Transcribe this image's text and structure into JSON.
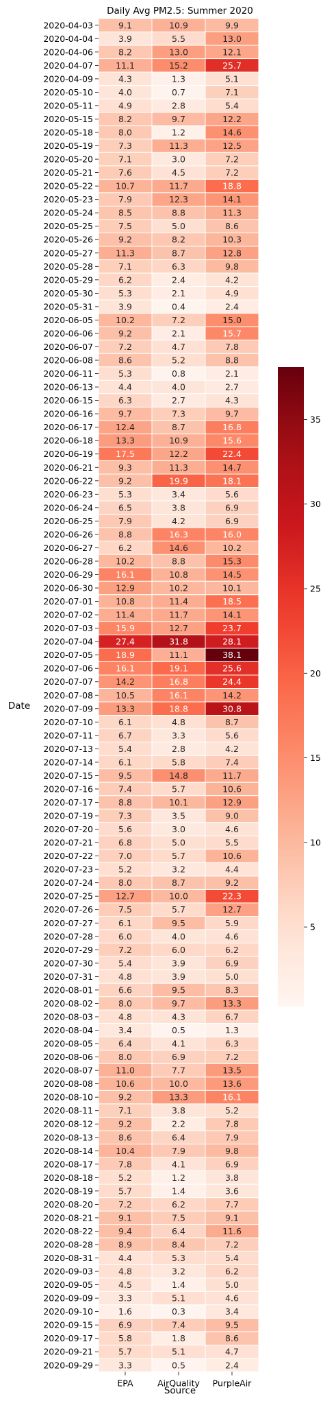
{
  "chart_data": {
    "type": "heatmap",
    "title": "Daily Avg PM2.5: Summer 2020",
    "xlabel": "Source",
    "ylabel": "Date",
    "columns": [
      "EPA",
      "AirQuality",
      "PurpleAir"
    ],
    "rows": [
      "2020-04-03",
      "2020-04-04",
      "2020-04-06",
      "2020-04-07",
      "2020-04-09",
      "2020-05-10",
      "2020-05-11",
      "2020-05-15",
      "2020-05-18",
      "2020-05-19",
      "2020-05-20",
      "2020-05-21",
      "2020-05-22",
      "2020-05-23",
      "2020-05-24",
      "2020-05-25",
      "2020-05-26",
      "2020-05-27",
      "2020-05-28",
      "2020-05-29",
      "2020-05-30",
      "2020-05-31",
      "2020-06-05",
      "2020-06-06",
      "2020-06-07",
      "2020-06-08",
      "2020-06-11",
      "2020-06-13",
      "2020-06-15",
      "2020-06-16",
      "2020-06-17",
      "2020-06-18",
      "2020-06-19",
      "2020-06-21",
      "2020-06-22",
      "2020-06-23",
      "2020-06-24",
      "2020-06-25",
      "2020-06-26",
      "2020-06-27",
      "2020-06-28",
      "2020-06-29",
      "2020-06-30",
      "2020-07-01",
      "2020-07-02",
      "2020-07-03",
      "2020-07-04",
      "2020-07-05",
      "2020-07-06",
      "2020-07-07",
      "2020-07-08",
      "2020-07-09",
      "2020-07-10",
      "2020-07-11",
      "2020-07-13",
      "2020-07-14",
      "2020-07-15",
      "2020-07-16",
      "2020-07-17",
      "2020-07-19",
      "2020-07-20",
      "2020-07-21",
      "2020-07-22",
      "2020-07-23",
      "2020-07-24",
      "2020-07-25",
      "2020-07-26",
      "2020-07-27",
      "2020-07-28",
      "2020-07-29",
      "2020-07-30",
      "2020-07-31",
      "2020-08-01",
      "2020-08-02",
      "2020-08-03",
      "2020-08-04",
      "2020-08-05",
      "2020-08-06",
      "2020-08-07",
      "2020-08-08",
      "2020-08-10",
      "2020-08-11",
      "2020-08-12",
      "2020-08-13",
      "2020-08-14",
      "2020-08-17",
      "2020-08-18",
      "2020-08-19",
      "2020-08-20",
      "2020-08-21",
      "2020-08-22",
      "2020-08-28",
      "2020-08-31",
      "2020-09-03",
      "2020-09-05",
      "2020-09-09",
      "2020-09-10",
      "2020-09-15",
      "2020-09-17",
      "2020-09-21",
      "2020-09-29"
    ],
    "values": [
      [
        9.1,
        10.9,
        9.9
      ],
      [
        3.9,
        5.5,
        13.0
      ],
      [
        8.2,
        13.0,
        12.1
      ],
      [
        11.1,
        15.2,
        25.7
      ],
      [
        4.3,
        1.3,
        5.1
      ],
      [
        4.0,
        0.7,
        7.1
      ],
      [
        4.9,
        2.8,
        5.4
      ],
      [
        8.2,
        9.7,
        12.2
      ],
      [
        8.0,
        1.2,
        14.6
      ],
      [
        7.3,
        11.3,
        12.5
      ],
      [
        7.1,
        3.0,
        7.2
      ],
      [
        7.6,
        4.5,
        7.2
      ],
      [
        10.7,
        11.7,
        18.8
      ],
      [
        7.9,
        12.3,
        14.1
      ],
      [
        8.5,
        8.8,
        11.3
      ],
      [
        7.5,
        5.0,
        8.6
      ],
      [
        9.2,
        8.2,
        10.3
      ],
      [
        11.3,
        8.7,
        12.8
      ],
      [
        7.1,
        6.3,
        9.8
      ],
      [
        6.2,
        2.4,
        4.2
      ],
      [
        5.3,
        2.1,
        4.9
      ],
      [
        3.9,
        0.4,
        2.4
      ],
      [
        10.2,
        7.2,
        15.0
      ],
      [
        9.2,
        2.1,
        15.7
      ],
      [
        7.2,
        4.7,
        7.8
      ],
      [
        8.6,
        5.2,
        8.8
      ],
      [
        5.3,
        0.8,
        2.1
      ],
      [
        4.4,
        4.0,
        2.7
      ],
      [
        6.3,
        2.7,
        4.3
      ],
      [
        9.7,
        7.3,
        9.7
      ],
      [
        12.4,
        8.7,
        16.8
      ],
      [
        13.3,
        10.9,
        15.6
      ],
      [
        17.5,
        12.2,
        22.4
      ],
      [
        9.3,
        11.3,
        14.7
      ],
      [
        9.2,
        19.9,
        18.1
      ],
      [
        5.3,
        3.4,
        5.6
      ],
      [
        6.5,
        3.8,
        6.9
      ],
      [
        7.9,
        4.2,
        6.9
      ],
      [
        8.8,
        16.3,
        16.0
      ],
      [
        6.2,
        14.6,
        10.2
      ],
      [
        10.2,
        8.8,
        15.3
      ],
      [
        16.1,
        10.8,
        14.5
      ],
      [
        12.9,
        10.2,
        10.1
      ],
      [
        10.8,
        11.4,
        18.5
      ],
      [
        11.4,
        11.7,
        14.1
      ],
      [
        15.9,
        12.7,
        23.7
      ],
      [
        27.4,
        31.8,
        28.1
      ],
      [
        18.9,
        11.1,
        38.1
      ],
      [
        16.1,
        19.1,
        25.6
      ],
      [
        14.2,
        16.8,
        24.4
      ],
      [
        10.5,
        16.1,
        14.2
      ],
      [
        13.3,
        18.8,
        30.8
      ],
      [
        6.1,
        4.8,
        8.7
      ],
      [
        6.7,
        3.3,
        5.6
      ],
      [
        5.4,
        2.8,
        4.2
      ],
      [
        6.1,
        5.8,
        7.4
      ],
      [
        9.5,
        14.8,
        11.7
      ],
      [
        7.4,
        5.7,
        10.6
      ],
      [
        8.8,
        10.1,
        12.9
      ],
      [
        7.3,
        3.5,
        9.0
      ],
      [
        5.6,
        3.0,
        4.6
      ],
      [
        6.8,
        5.0,
        5.5
      ],
      [
        7.0,
        5.7,
        10.6
      ],
      [
        5.2,
        3.2,
        4.4
      ],
      [
        8.0,
        8.7,
        9.2
      ],
      [
        12.7,
        10.0,
        22.3
      ],
      [
        7.5,
        5.7,
        12.7
      ],
      [
        6.1,
        9.5,
        5.9
      ],
      [
        6.0,
        4.0,
        4.6
      ],
      [
        7.2,
        6.0,
        6.2
      ],
      [
        5.4,
        3.9,
        6.9
      ],
      [
        4.8,
        3.9,
        5.0
      ],
      [
        6.6,
        9.5,
        8.3
      ],
      [
        8.0,
        9.7,
        13.3
      ],
      [
        4.8,
        4.3,
        6.7
      ],
      [
        3.4,
        0.5,
        1.3
      ],
      [
        6.4,
        4.1,
        6.3
      ],
      [
        8.0,
        6.9,
        7.2
      ],
      [
        11.0,
        7.7,
        13.5
      ],
      [
        10.6,
        10.0,
        13.6
      ],
      [
        9.2,
        13.3,
        16.1
      ],
      [
        7.1,
        3.8,
        5.2
      ],
      [
        9.2,
        2.2,
        7.8
      ],
      [
        8.6,
        6.4,
        7.9
      ],
      [
        10.4,
        7.9,
        9.8
      ],
      [
        7.8,
        4.1,
        6.9
      ],
      [
        5.2,
        1.2,
        3.8
      ],
      [
        5.7,
        1.4,
        3.6
      ],
      [
        7.2,
        6.2,
        7.7
      ],
      [
        9.1,
        7.5,
        9.1
      ],
      [
        9.4,
        6.4,
        11.6
      ],
      [
        8.9,
        8.4,
        7.2
      ],
      [
        4.4,
        5.3,
        5.4
      ],
      [
        4.8,
        3.2,
        6.2
      ],
      [
        4.5,
        1.4,
        5.0
      ],
      [
        3.3,
        5.1,
        4.6
      ],
      [
        1.6,
        0.3,
        3.4
      ],
      [
        6.9,
        7.4,
        9.5
      ],
      [
        5.8,
        1.8,
        8.6
      ],
      [
        5.7,
        5.1,
        4.7
      ],
      [
        3.3,
        0.5,
        2.4
      ]
    ],
    "colormap": "Reds",
    "vmin": 0.3,
    "vmax": 38.1,
    "colorbar_ticks": [
      5,
      10,
      15,
      20,
      25,
      30,
      35
    ],
    "colorbar_tick_labels": [
      "5",
      "10",
      "15",
      "20",
      "25",
      "30",
      "35"
    ],
    "annotations": true
  }
}
